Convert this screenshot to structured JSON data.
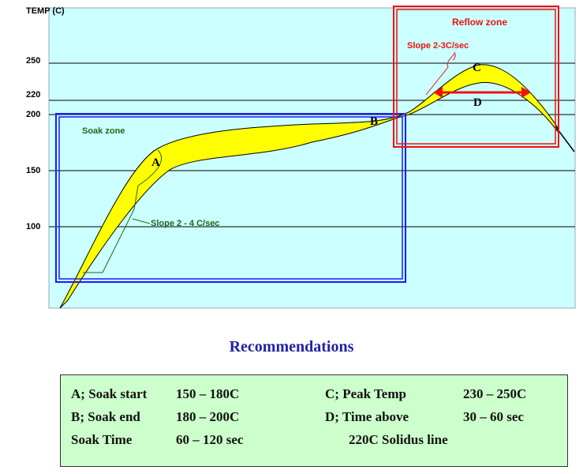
{
  "chart_data": {
    "type": "area",
    "ylabel": "TEMP (C)",
    "y_ticks": [
      250,
      220,
      200,
      150,
      100
    ],
    "ylim": [
      30,
      250
    ],
    "grid": "horizontal",
    "points": [
      {
        "label": "A",
        "temp": 165
      },
      {
        "label": "B",
        "temp": 190
      },
      {
        "label": "C",
        "temp": 243
      },
      {
        "label": "D",
        "temp": 220
      }
    ],
    "zones": [
      {
        "name": "Soak zone",
        "color": "#1a1aff"
      },
      {
        "name": "Reflow zone",
        "color": "#ee1111"
      }
    ],
    "annotations": [
      "Slope 2 - 4 C/sec",
      "Slope 2-3C/sec"
    ],
    "band_color": "#ffff00",
    "plot_bg": "#ccffff"
  },
  "recommendations": {
    "title": "Recommendations",
    "rows": [
      [
        "A; Soak start",
        "150 – 180C",
        "C; Peak Temp",
        "230 – 250C"
      ],
      [
        "B; Soak end",
        "180 – 200C",
        "D; Time above",
        "30 – 60 sec"
      ],
      [
        "Soak Time",
        "60 – 120 sec",
        "220C Solidus line",
        ""
      ]
    ]
  }
}
